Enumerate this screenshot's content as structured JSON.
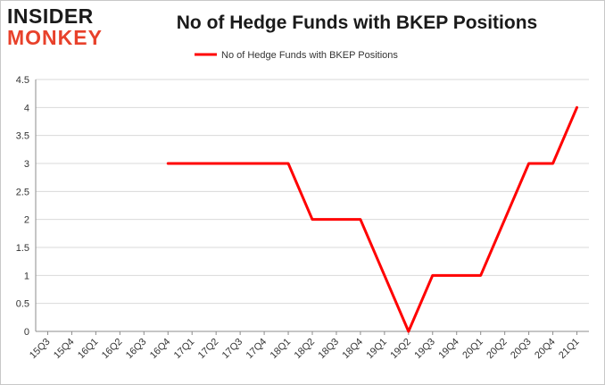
{
  "brand": {
    "line1": "INSIDER",
    "line2": "MONKEY"
  },
  "chart_data": {
    "type": "line",
    "title": "No of Hedge Funds with BKEP Positions",
    "xlabel": "",
    "ylabel": "",
    "ylim": [
      0,
      4.5
    ],
    "yticks": [
      0,
      0.5,
      1,
      1.5,
      2,
      2.5,
      3,
      3.5,
      4,
      4.5
    ],
    "grid": true,
    "legend_position": "top-center",
    "categories": [
      "15Q3",
      "15Q4",
      "16Q1",
      "16Q2",
      "16Q3",
      "16Q4",
      "17Q1",
      "17Q2",
      "17Q3",
      "17Q4",
      "18Q1",
      "18Q2",
      "18Q3",
      "18Q4",
      "19Q1",
      "19Q2",
      "19Q3",
      "19Q4",
      "20Q1",
      "20Q2",
      "20Q3",
      "20Q4",
      "21Q1"
    ],
    "series": [
      {
        "name": "No of Hedge Funds with BKEP Positions",
        "color": "#ff0000",
        "values": [
          null,
          null,
          null,
          null,
          null,
          3,
          3,
          3,
          3,
          3,
          3,
          2,
          2,
          2,
          1,
          0,
          1,
          1,
          1,
          2,
          3,
          3,
          4
        ]
      }
    ]
  }
}
